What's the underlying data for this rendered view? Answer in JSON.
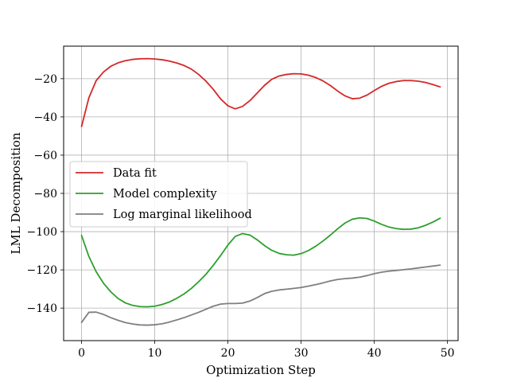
{
  "chart_data": {
    "type": "line",
    "title": "",
    "xlabel": "Optimization Step",
    "ylabel": "LML Decomposition",
    "xlim": [
      -2.45,
      51.45
    ],
    "ylim": [
      -157,
      -3
    ],
    "xticks": [
      0,
      10,
      20,
      30,
      40,
      50
    ],
    "yticks": [
      -140,
      -120,
      -100,
      -80,
      -60,
      -40,
      -20
    ],
    "xtick_labels": [
      "0",
      "10",
      "20",
      "30",
      "40",
      "50"
    ],
    "ytick_labels": [
      "−140",
      "−120",
      "−100",
      "−80",
      "−60",
      "−40",
      "−20"
    ],
    "grid": true,
    "legend_position": "center-left",
    "x": [
      0,
      1,
      2,
      3,
      4,
      5,
      6,
      7,
      8,
      9,
      10,
      11,
      12,
      13,
      14,
      15,
      16,
      17,
      18,
      19,
      20,
      21,
      22,
      23,
      24,
      25,
      26,
      27,
      28,
      29,
      30,
      31,
      32,
      33,
      34,
      35,
      36,
      37,
      38,
      39,
      40,
      41,
      42,
      43,
      44,
      45,
      46,
      47,
      48,
      49
    ],
    "series": [
      {
        "name": "Data fit",
        "color": "#d62728",
        "values": [
          -45,
          -30,
          -21,
          -16.5,
          -13.5,
          -11.7,
          -10.6,
          -9.9,
          -9.6,
          -9.5,
          -9.7,
          -10.1,
          -10.8,
          -11.8,
          -13.1,
          -15,
          -17.8,
          -21.3,
          -25.6,
          -30.6,
          -34.2,
          -35.8,
          -34.5,
          -31.5,
          -27.5,
          -23.5,
          -20.3,
          -18.6,
          -17.8,
          -17.4,
          -17.5,
          -18.2,
          -19.4,
          -21.2,
          -23.6,
          -26.5,
          -29,
          -30.5,
          -30.2,
          -28.6,
          -26.2,
          -24,
          -22.4,
          -21.5,
          -21,
          -21,
          -21.3,
          -22,
          -23.1,
          -24.3
        ]
      },
      {
        "name": "Model complexity",
        "color": "#2ca02c",
        "values": [
          -102,
          -113,
          -121,
          -127,
          -131.5,
          -135,
          -137.3,
          -138.6,
          -139.2,
          -139.3,
          -139,
          -138.1,
          -136.8,
          -134.9,
          -132.6,
          -129.7,
          -126.2,
          -122.3,
          -117.6,
          -112.5,
          -107,
          -102.5,
          -101,
          -101.8,
          -104.3,
          -107.3,
          -109.8,
          -111.4,
          -112.1,
          -112.3,
          -111.5,
          -109.9,
          -107.6,
          -104.9,
          -101.8,
          -98.5,
          -95.5,
          -93.5,
          -92.8,
          -93.1,
          -94.5,
          -96.2,
          -97.6,
          -98.4,
          -98.8,
          -98.7,
          -98,
          -96.7,
          -95,
          -93
        ]
      },
      {
        "name": "Log marginal likelihood",
        "color": "#7f7f7f",
        "values": [
          -147.5,
          -142.2,
          -142.1,
          -143.3,
          -145,
          -146.4,
          -147.6,
          -148.3,
          -148.8,
          -148.9,
          -148.7,
          -148.2,
          -147.3,
          -146.2,
          -145,
          -143.6,
          -142.2,
          -140.6,
          -139,
          -137.9,
          -137.6,
          -137.6,
          -137.4,
          -136.3,
          -134.5,
          -132.4,
          -131.2,
          -130.5,
          -130.1,
          -129.7,
          -129.2,
          -128.5,
          -127.7,
          -126.8,
          -125.8,
          -125,
          -124.6,
          -124.3,
          -123.8,
          -123,
          -122,
          -121.2,
          -120.7,
          -120.3,
          -119.9,
          -119.5,
          -119,
          -118.5,
          -118,
          -117.5
        ]
      }
    ]
  }
}
